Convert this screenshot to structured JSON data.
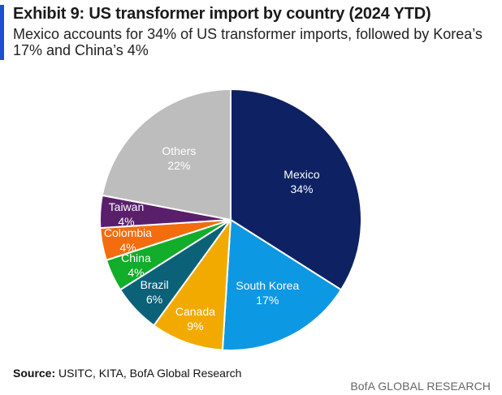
{
  "header": {
    "title": "Exhibit 9: US transformer import by country (2024 YTD)",
    "subtitle": "Mexico accounts for 34% of US transformer imports, followed by Korea’s 17% and China’s 4%"
  },
  "chart_data": {
    "type": "pie",
    "unit": "%",
    "start_angle_deg": 0,
    "direction": "clockwise",
    "slices": [
      {
        "name": "Mexico",
        "value": 34,
        "label": "34%",
        "color": "#0e2163",
        "text_color": "#ffffff"
      },
      {
        "name": "South Korea",
        "value": 17,
        "label": "17%",
        "color": "#0d98e3",
        "text_color": "#ffffff"
      },
      {
        "name": "Canada",
        "value": 9,
        "label": "9%",
        "color": "#f2aa00",
        "text_color": "#ffffff"
      },
      {
        "name": "Brazil",
        "value": 6,
        "label": "6%",
        "color": "#0b6177",
        "text_color": "#ffffff"
      },
      {
        "name": "China",
        "value": 4,
        "label": "4%",
        "color": "#12ad2b",
        "text_color": "#ffffff"
      },
      {
        "name": "Colombia",
        "value": 4,
        "label": "4%",
        "color": "#f36c0e",
        "text_color": "#ffffff"
      },
      {
        "name": "Taiwan",
        "value": 4,
        "label": "4%",
        "color": "#5a1f6b",
        "text_color": "#ffffff"
      },
      {
        "name": "Others",
        "value": 22,
        "label": "22%",
        "color": "#bdbdbd",
        "text_color": "#ffffff"
      }
    ]
  },
  "footer": {
    "source_label": "Source:",
    "source_text": "USITC, KITA, BofA Global Research",
    "brand": "BofA GLOBAL RESEARCH"
  }
}
